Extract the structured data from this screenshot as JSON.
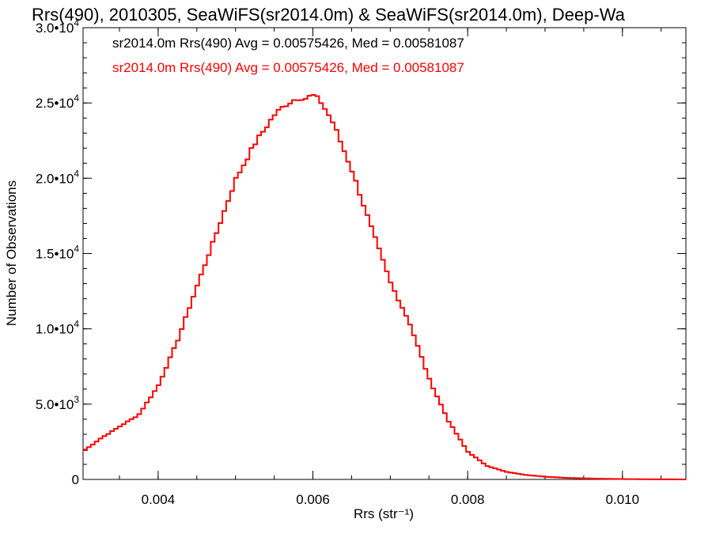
{
  "chart_data": {
    "type": "step",
    "title": "Rrs(490), 2010305, SeaWiFS(sr2014.0m) & SeaWiFS(sr2014.0m), Deep-Wa",
    "xlabel": "Rrs (str⁻¹)",
    "ylabel": "Number of Observations",
    "xlim": [
      0.00303,
      0.01082
    ],
    "ylim": [
      0,
      30000
    ],
    "x_ticks": [
      0.004,
      0.006,
      0.008,
      0.01
    ],
    "x_tick_labels": [
      "0.004",
      "0.006",
      "0.008",
      "0.010"
    ],
    "x_minor_step": 0.0005,
    "y_ticks": [
      {
        "value": 0,
        "mantissa": "0",
        "exp": ""
      },
      {
        "value": 5000,
        "mantissa": "5.0•10",
        "exp": "3"
      },
      {
        "value": 10000,
        "mantissa": "1.0•10",
        "exp": "4"
      },
      {
        "value": 15000,
        "mantissa": "1.5•10",
        "exp": "4"
      },
      {
        "value": 20000,
        "mantissa": "2.0•10",
        "exp": "4"
      },
      {
        "value": 25000,
        "mantissa": "2.5•10",
        "exp": "4"
      },
      {
        "value": 30000,
        "mantissa": "3.0•10",
        "exp": "4"
      }
    ],
    "y_minor_step": 1000,
    "grid": false,
    "legend": [
      {
        "text": "sr2014.0m Rrs(490) Avg = 0.00575426, Med = 0.00581087",
        "color": "#000000"
      },
      {
        "text": "sr2014.0m Rrs(490) Avg = 0.00575426, Med = 0.00581087",
        "color": "#ff0000"
      }
    ],
    "series": [
      {
        "color": "#ff0000",
        "bin_width": 5e-05,
        "x": [
          0.00303,
          0.00325,
          0.0035,
          0.00375,
          0.004,
          0.00425,
          0.0045,
          0.00475,
          0.005,
          0.00525,
          0.0055,
          0.00565,
          0.00575,
          0.00583,
          0.0059,
          0.006,
          0.0061,
          0.00625,
          0.0065,
          0.00675,
          0.007,
          0.00725,
          0.0075,
          0.00775,
          0.008,
          0.00825,
          0.0085,
          0.00875,
          0.009,
          0.00925,
          0.0095,
          0.00975,
          0.01,
          0.01025,
          0.0105,
          0.01082
        ],
        "y": [
          1850,
          2700,
          3500,
          4300,
          6200,
          9200,
          12800,
          16300,
          19900,
          22300,
          24200,
          24900,
          25200,
          25400,
          25300,
          25500,
          25100,
          23800,
          20600,
          16800,
          13100,
          10400,
          6700,
          3900,
          1850,
          900,
          500,
          300,
          180,
          110,
          70,
          40,
          25,
          12,
          5,
          2
        ]
      }
    ]
  }
}
